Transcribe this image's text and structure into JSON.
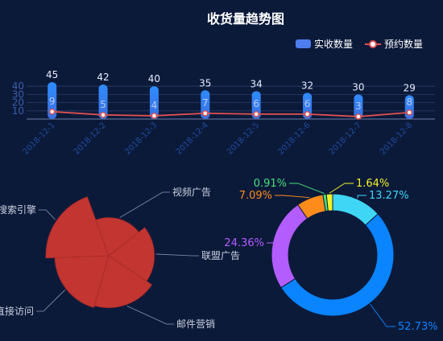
{
  "chart_data": [
    {
      "type": "bar",
      "title": "收货量趋势图",
      "categories": [
        "2018-12-1",
        "2018-12-2",
        "2018-12-3",
        "2018-12-4",
        "2018-12-5",
        "2018-12-6",
        "2018-12-7",
        "2018-12-8"
      ],
      "series": [
        {
          "name": "实收数量",
          "type": "bar",
          "values": [
            45,
            42,
            40,
            35,
            34,
            32,
            30,
            29
          ],
          "color": "#3b8cf0"
        },
        {
          "name": "预约数量",
          "type": "line",
          "values": [
            9,
            5,
            4,
            7,
            6,
            6,
            3,
            8
          ],
          "color": "#e0524f"
        }
      ],
      "ylim": [
        0,
        50
      ],
      "yticks": [
        "10",
        "20",
        "30",
        "40"
      ],
      "grid": true,
      "legend": "top-right"
    },
    {
      "type": "pie",
      "variant": "rose",
      "labels": [
        "视频广告",
        "联盟广告",
        "邮件营销",
        "直接访问",
        "搜索引擎"
      ],
      "values": [
        3.5,
        5,
        6.5,
        7,
        9.5
      ],
      "color": "#c23531"
    },
    {
      "type": "pie",
      "variant": "donut",
      "slices": [
        {
          "label": "13.27%",
          "value": 13.27,
          "color": "#3fd6f5"
        },
        {
          "label": "52.73%",
          "value": 52.73,
          "color": "#0a84ff"
        },
        {
          "label": "24.36%",
          "value": 24.36,
          "color": "#b35cff"
        },
        {
          "label": "7.09%",
          "value": 7.09,
          "color": "#ff8c1a"
        },
        {
          "label": "0.91%",
          "value": 0.91,
          "color": "#45e07a"
        },
        {
          "label": "1.64%",
          "value": 1.64,
          "color": "#f2f22a"
        }
      ]
    }
  ]
}
